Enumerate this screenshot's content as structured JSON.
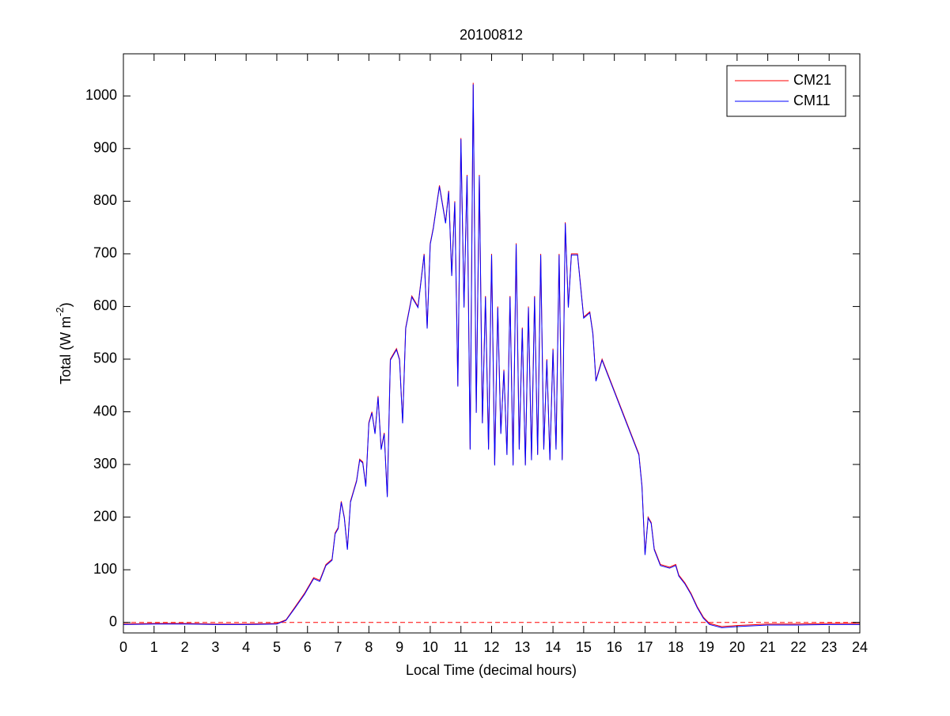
{
  "chart_data": {
    "type": "line",
    "title": "20100812",
    "xlabel": "Local Time (decimal hours)",
    "ylabel": [
      "Total (W m",
      "-2",
      ")"
    ],
    "x": [
      0,
      1,
      2,
      3,
      4,
      5,
      5.3,
      5.6,
      5.9,
      6.2,
      6.4,
      6.6,
      6.8,
      6.9,
      7.0,
      7.1,
      7.2,
      7.3,
      7.4,
      7.5,
      7.6,
      7.7,
      7.8,
      7.9,
      8.0,
      8.1,
      8.2,
      8.3,
      8.4,
      8.5,
      8.6,
      8.7,
      8.8,
      8.9,
      9.0,
      9.1,
      9.2,
      9.4,
      9.6,
      9.8,
      9.9,
      10.0,
      10.1,
      10.3,
      10.5,
      10.6,
      10.7,
      10.8,
      10.9,
      11.0,
      11.1,
      11.2,
      11.3,
      11.4,
      11.5,
      11.6,
      11.7,
      11.8,
      11.9,
      12.0,
      12.1,
      12.2,
      12.3,
      12.4,
      12.5,
      12.6,
      12.7,
      12.8,
      12.9,
      13.0,
      13.1,
      13.2,
      13.3,
      13.4,
      13.5,
      13.6,
      13.7,
      13.8,
      13.9,
      14.0,
      14.1,
      14.2,
      14.3,
      14.4,
      14.5,
      14.6,
      14.8,
      14.9,
      15.0,
      15.2,
      15.3,
      15.4,
      15.6,
      15.8,
      16.0,
      16.2,
      16.4,
      16.6,
      16.8,
      16.9,
      17.0,
      17.1,
      17.2,
      17.3,
      17.5,
      17.8,
      18.0,
      18.1,
      18.3,
      18.5,
      18.7,
      18.9,
      19.1,
      19.5,
      20,
      21,
      22,
      23,
      24
    ],
    "series": [
      {
        "name": "CM21",
        "color": "#ff0000",
        "values": [
          -3,
          -2,
          -2,
          -3,
          -3,
          -2,
          5,
          30,
          55,
          85,
          80,
          110,
          120,
          170,
          180,
          230,
          200,
          140,
          230,
          250,
          270,
          310,
          305,
          260,
          380,
          400,
          360,
          430,
          330,
          360,
          240,
          500,
          510,
          520,
          500,
          380,
          560,
          620,
          600,
          700,
          560,
          720,
          750,
          830,
          760,
          820,
          660,
          800,
          450,
          920,
          600,
          850,
          330,
          1025,
          400,
          850,
          380,
          620,
          330,
          700,
          300,
          600,
          360,
          480,
          320,
          620,
          300,
          720,
          330,
          560,
          300,
          600,
          310,
          620,
          320,
          700,
          330,
          500,
          310,
          520,
          330,
          700,
          310,
          760,
          600,
          700,
          700,
          640,
          580,
          590,
          550,
          460,
          500,
          470,
          440,
          410,
          380,
          350,
          320,
          260,
          130,
          200,
          190,
          140,
          110,
          105,
          110,
          90,
          75,
          55,
          30,
          10,
          -2,
          -8,
          -6,
          -3,
          -3,
          -2,
          -2
        ]
      },
      {
        "name": "CM11",
        "color": "#0000ff",
        "values": [
          -4,
          -3,
          -3,
          -4,
          -4,
          -3,
          4,
          28,
          53,
          83,
          78,
          108,
          118,
          168,
          178,
          228,
          198,
          138,
          228,
          248,
          268,
          308,
          303,
          258,
          378,
          398,
          358,
          428,
          328,
          358,
          238,
          498,
          508,
          518,
          498,
          378,
          558,
          618,
          598,
          698,
          558,
          718,
          748,
          828,
          758,
          818,
          658,
          798,
          448,
          918,
          598,
          848,
          328,
          1022,
          398,
          848,
          378,
          618,
          328,
          698,
          298,
          598,
          358,
          478,
          318,
          618,
          298,
          718,
          328,
          558,
          298,
          598,
          308,
          618,
          318,
          698,
          328,
          498,
          308,
          518,
          328,
          698,
          308,
          758,
          598,
          698,
          698,
          638,
          578,
          588,
          548,
          458,
          498,
          468,
          438,
          408,
          378,
          348,
          318,
          258,
          128,
          198,
          188,
          138,
          108,
          103,
          108,
          88,
          73,
          53,
          28,
          8,
          -4,
          -10,
          -8,
          -5,
          -5,
          -4,
          -4
        ]
      }
    ],
    "reference_line": {
      "value": 0,
      "color": "#ff0000",
      "style": "dashed"
    },
    "xlim": [
      0,
      24
    ],
    "xticks": [
      0,
      1,
      2,
      3,
      4,
      5,
      6,
      7,
      8,
      9,
      10,
      11,
      12,
      13,
      14,
      15,
      16,
      17,
      18,
      19,
      20,
      21,
      22,
      23,
      24
    ],
    "ylim": [
      -20,
      1080
    ],
    "yticks": [
      0,
      100,
      200,
      300,
      400,
      500,
      600,
      700,
      800,
      900,
      1000
    ],
    "grid": false,
    "legend": "upper right"
  }
}
